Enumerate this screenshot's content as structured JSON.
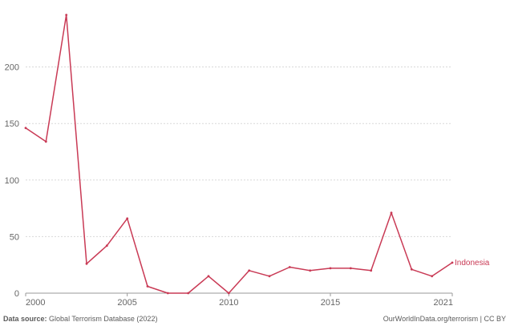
{
  "chart_data": {
    "type": "line",
    "x": [
      2000,
      2001,
      2002,
      2003,
      2004,
      2005,
      2006,
      2007,
      2008,
      2009,
      2010,
      2011,
      2012,
      2013,
      2014,
      2015,
      2016,
      2017,
      2018,
      2019,
      2020,
      2021
    ],
    "series": [
      {
        "name": "Indonesia",
        "values": [
          146,
          134,
          246,
          26,
          42,
          66,
          6,
          0,
          0,
          15,
          0,
          20,
          15,
          23,
          20,
          22,
          22,
          20,
          71,
          21,
          15,
          27
        ],
        "color": "#c93a55"
      }
    ],
    "xlim": [
      2000,
      2022
    ],
    "ylim": [
      0,
      250
    ],
    "xticks": [
      "2000",
      "2005",
      "2010",
      "2015",
      "2021"
    ],
    "yticks": [
      "0",
      "50",
      "100",
      "150",
      "200"
    ],
    "grid": "horizontal dashed",
    "legend": "inline-right"
  },
  "footer": {
    "source_label": "Data source:",
    "source_text": "Global Terrorism Database (2022)",
    "credit": "OurWorldInData.org/terrorism | CC BY"
  }
}
